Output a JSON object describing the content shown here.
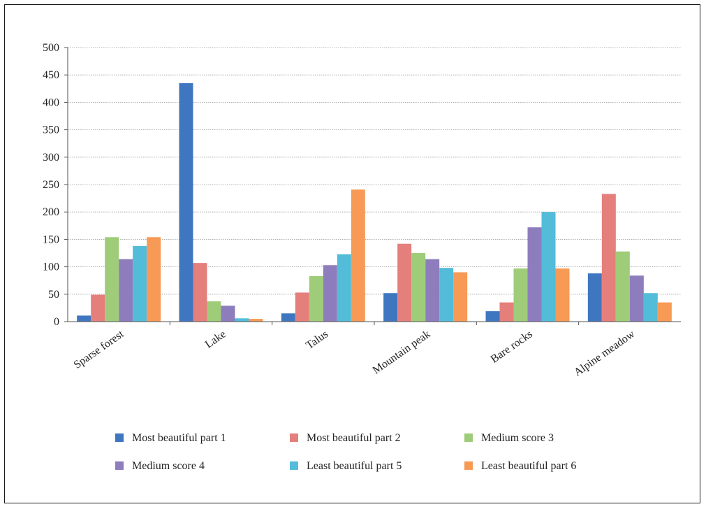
{
  "chart_data": {
    "type": "bar",
    "categories": [
      "Sparse forest",
      "Lake",
      "Talus",
      "Mountain peak",
      "Bare rocks",
      "Alpine meadow"
    ],
    "series": [
      {
        "name": "Most beautiful part 1",
        "color": "#3f76c0",
        "values": [
          11,
          435,
          15,
          52,
          19,
          88
        ]
      },
      {
        "name": "Most beautiful part 2",
        "color": "#e57f7c",
        "values": [
          49,
          107,
          53,
          142,
          35,
          233
        ]
      },
      {
        "name": "Medium score 3",
        "color": "#9fcc79",
        "values": [
          154,
          37,
          83,
          125,
          97,
          128
        ]
      },
      {
        "name": "Medium score 4",
        "color": "#8e7dbd",
        "values": [
          114,
          29,
          103,
          114,
          172,
          84
        ]
      },
      {
        "name": "Least beautiful part 5",
        "color": "#52bcd9",
        "values": [
          138,
          6,
          123,
          98,
          200,
          52
        ]
      },
      {
        "name": "Least beautiful part 6",
        "color": "#f79a55",
        "values": [
          154,
          5,
          241,
          90,
          97,
          35
        ]
      }
    ],
    "ylim": [
      0,
      500
    ],
    "yticks": [
      0,
      50,
      100,
      150,
      200,
      250,
      300,
      350,
      400,
      450,
      500
    ],
    "grid": true,
    "legend_position": "bottom"
  }
}
